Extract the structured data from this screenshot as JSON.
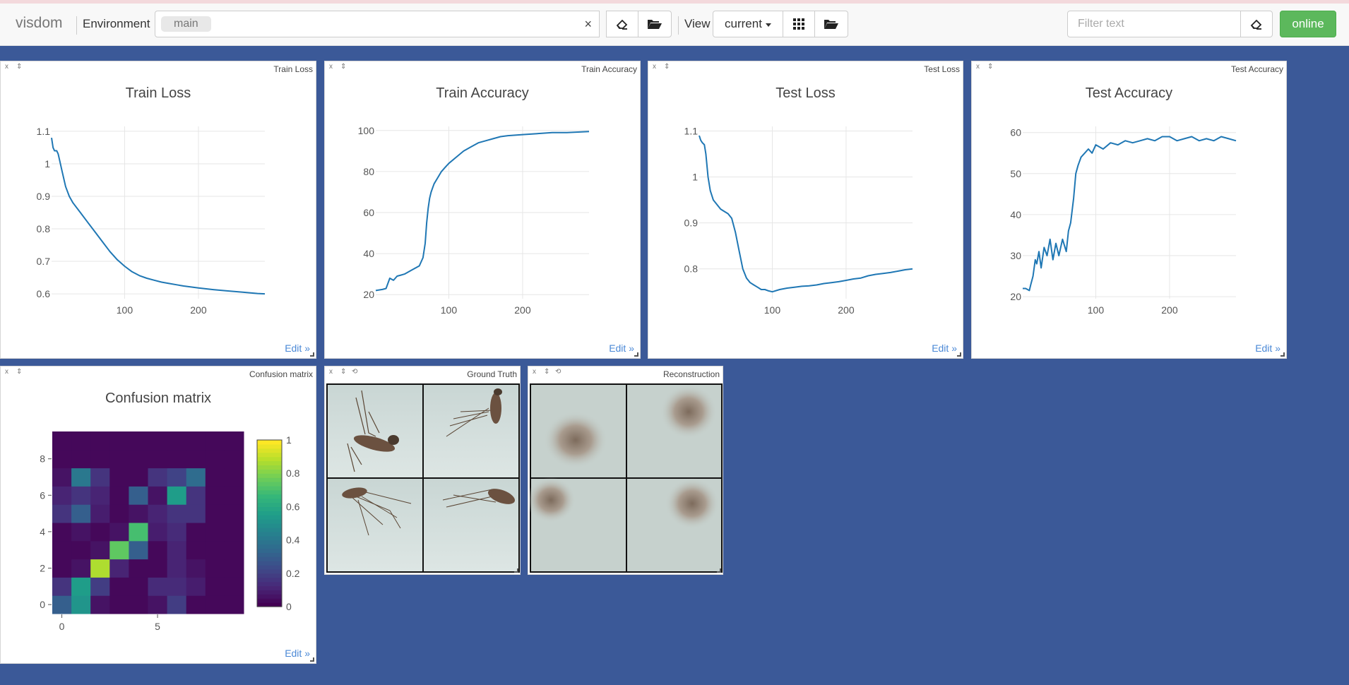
{
  "app": {
    "brand": "visdom",
    "env_label": "Environment",
    "env_tag": "main",
    "env_clear": "×",
    "view_label": "View",
    "view_value": "current",
    "filter_placeholder": "Filter text",
    "status": "online"
  },
  "icons": {
    "eraser": "eraser-icon",
    "folder": "folder-open-icon",
    "grid": "grid-icon",
    "close": "x",
    "move": "⇕",
    "reset": "⟲"
  },
  "colors": {
    "line": "#1f77b4",
    "background": "#3b5998",
    "online": "#5cb85c",
    "edit": "#4a88d6"
  },
  "panes": [
    {
      "title": "Train Loss",
      "close": "x",
      "move": "⇕",
      "edit": "Edit »"
    },
    {
      "title": "Train Accuracy",
      "close": "x",
      "move": "⇕",
      "edit": "Edit »"
    },
    {
      "title": "Test Loss",
      "close": "x",
      "move": "⇕",
      "edit": "Edit »"
    },
    {
      "title": "Test Accuracy",
      "close": "x",
      "move": "⇕",
      "edit": "Edit »"
    },
    {
      "title": "Confusion matrix",
      "close": "x",
      "move": "⇕",
      "edit": "Edit »"
    },
    {
      "title": "Ground Truth",
      "close": "x",
      "move": "⇕",
      "reset": "⟲",
      "images": [
        "mosquito specimen",
        "mosquito specimen",
        "mosquito specimen",
        "mosquito specimen"
      ]
    },
    {
      "title": "Reconstruction",
      "close": "x",
      "move": "⇕",
      "reset": "⟲",
      "images": [
        "blurred reconstruction",
        "blurred reconstruction",
        "blurred reconstruction",
        "blurred reconstruction"
      ]
    }
  ],
  "chart_data": [
    {
      "type": "line",
      "title": "Train Loss",
      "xlim": [
        1,
        290
      ],
      "ylim": [
        0.585,
        1.115
      ],
      "xticks": [
        100,
        200
      ],
      "yticks": [
        0.6,
        0.7,
        0.8,
        0.9,
        1,
        1.1
      ],
      "ytick_labels": [
        "0.6",
        "0.7",
        "0.8",
        "0.9",
        "1",
        "1.1"
      ],
      "x": [
        1,
        3,
        5,
        8,
        10,
        12,
        15,
        20,
        25,
        30,
        40,
        50,
        60,
        70,
        80,
        90,
        100,
        110,
        120,
        130,
        140,
        150,
        160,
        170,
        180,
        200,
        220,
        240,
        260,
        280,
        290
      ],
      "y": [
        1.08,
        1.05,
        1.04,
        1.04,
        1.03,
        1.01,
        0.98,
        0.93,
        0.9,
        0.88,
        0.85,
        0.82,
        0.79,
        0.76,
        0.73,
        0.705,
        0.685,
        0.668,
        0.656,
        0.648,
        0.642,
        0.636,
        0.632,
        0.628,
        0.624,
        0.618,
        0.613,
        0.609,
        0.605,
        0.601,
        0.6
      ]
    },
    {
      "type": "line",
      "title": "Train Accuracy",
      "xlim": [
        1,
        290
      ],
      "ylim": [
        18,
        102
      ],
      "xticks": [
        100,
        200
      ],
      "yticks": [
        20,
        40,
        60,
        80,
        100
      ],
      "ytick_labels": [
        "20",
        "40",
        "60",
        "80",
        "100"
      ],
      "x": [
        1,
        10,
        15,
        20,
        25,
        30,
        35,
        40,
        50,
        60,
        65,
        68,
        70,
        72,
        74,
        76,
        78,
        80,
        85,
        90,
        95,
        100,
        110,
        120,
        130,
        140,
        150,
        160,
        170,
        180,
        200,
        220,
        240,
        260,
        280,
        290
      ],
      "y": [
        22,
        22.5,
        23,
        28,
        27,
        29,
        29.5,
        30,
        32,
        34,
        38,
        45,
        55,
        62,
        67,
        70,
        72,
        74,
        77,
        80,
        82,
        84,
        87,
        90,
        92,
        94,
        95,
        96,
        97,
        97.5,
        98,
        98.5,
        99,
        99,
        99.3,
        99.5
      ]
    },
    {
      "type": "line",
      "title": "Test Loss",
      "xlim": [
        1,
        290
      ],
      "ylim": [
        0.735,
        1.11
      ],
      "xticks": [
        100,
        200
      ],
      "yticks": [
        0.8,
        0.9,
        1,
        1.1
      ],
      "ytick_labels": [
        "0.8",
        "0.9",
        "1",
        "1.1"
      ],
      "x": [
        1,
        3,
        5,
        8,
        10,
        13,
        16,
        20,
        25,
        30,
        35,
        40,
        45,
        50,
        55,
        60,
        65,
        70,
        75,
        80,
        85,
        90,
        95,
        100,
        110,
        120,
        130,
        140,
        150,
        160,
        170,
        180,
        190,
        200,
        210,
        220,
        230,
        240,
        250,
        260,
        270,
        280,
        290
      ],
      "y": [
        1.09,
        1.08,
        1.075,
        1.07,
        1.05,
        1.0,
        0.97,
        0.95,
        0.94,
        0.93,
        0.925,
        0.92,
        0.91,
        0.88,
        0.84,
        0.8,
        0.78,
        0.77,
        0.765,
        0.76,
        0.755,
        0.755,
        0.752,
        0.75,
        0.755,
        0.758,
        0.76,
        0.762,
        0.763,
        0.765,
        0.768,
        0.77,
        0.772,
        0.775,
        0.778,
        0.78,
        0.785,
        0.788,
        0.79,
        0.792,
        0.795,
        0.798,
        0.8
      ]
    },
    {
      "type": "line",
      "title": "Test Accuracy",
      "xlim": [
        1,
        290
      ],
      "ylim": [
        19.5,
        61.5
      ],
      "xticks": [
        100,
        200
      ],
      "yticks": [
        20,
        30,
        40,
        50,
        60
      ],
      "ytick_labels": [
        "20",
        "30",
        "40",
        "50",
        "60"
      ],
      "x": [
        1,
        5,
        10,
        12,
        15,
        18,
        20,
        23,
        26,
        30,
        34,
        38,
        42,
        46,
        50,
        55,
        60,
        63,
        66,
        70,
        73,
        76,
        80,
        85,
        90,
        95,
        100,
        110,
        120,
        130,
        140,
        150,
        160,
        170,
        180,
        190,
        200,
        210,
        220,
        230,
        240,
        250,
        260,
        270,
        280,
        290
      ],
      "y": [
        22,
        22,
        21.5,
        23,
        25,
        29,
        28,
        31,
        27,
        32,
        30,
        34,
        29,
        33,
        30,
        34,
        31,
        36,
        38,
        44,
        50,
        52,
        54,
        55,
        56,
        55,
        57,
        56,
        57.5,
        57,
        58,
        57.5,
        58,
        58.5,
        58,
        59,
        59,
        58,
        58.5,
        59,
        58,
        58.5,
        58,
        59,
        58.5,
        58
      ]
    },
    {
      "type": "heatmap",
      "title": "Confusion matrix",
      "xticks": [
        0,
        5
      ],
      "yticks": [
        0,
        2,
        4,
        6,
        8
      ],
      "ytick_labels": [
        "0",
        "2",
        "4",
        "6",
        "8"
      ],
      "colorbar_ticks": [
        0,
        0.2,
        0.4,
        0.6,
        0.8,
        1
      ],
      "colorbar_labels": [
        "0",
        "0.2",
        "0.4",
        "0.6",
        "0.8",
        "1"
      ],
      "z": [
        [
          0.3,
          0.52,
          0.05,
          0.02,
          0.02,
          0.05,
          0.18,
          0.02,
          0.02,
          0.02
        ],
        [
          0.15,
          0.55,
          0.18,
          0.02,
          0.02,
          0.12,
          0.12,
          0.08,
          0.02,
          0.02
        ],
        [
          0.02,
          0.05,
          0.88,
          0.1,
          0.02,
          0.02,
          0.1,
          0.05,
          0.02,
          0.02
        ],
        [
          0.02,
          0.02,
          0.05,
          0.75,
          0.3,
          0.02,
          0.1,
          0.02,
          0.02,
          0.02
        ],
        [
          0.02,
          0.05,
          0.02,
          0.05,
          0.7,
          0.08,
          0.12,
          0.02,
          0.02,
          0.02
        ],
        [
          0.15,
          0.3,
          0.08,
          0.02,
          0.05,
          0.1,
          0.15,
          0.15,
          0.02,
          0.02
        ],
        [
          0.1,
          0.15,
          0.1,
          0.02,
          0.3,
          0.05,
          0.55,
          0.15,
          0.02,
          0.02
        ],
        [
          0.05,
          0.4,
          0.15,
          0.02,
          0.02,
          0.15,
          0.2,
          0.35,
          0.02,
          0.02
        ],
        [
          0.02,
          0.02,
          0.02,
          0.02,
          0.02,
          0.02,
          0.02,
          0.02,
          0.02,
          0.02
        ],
        [
          0.02,
          0.02,
          0.02,
          0.02,
          0.02,
          0.02,
          0.02,
          0.02,
          0.02,
          0.02
        ]
      ]
    }
  ]
}
